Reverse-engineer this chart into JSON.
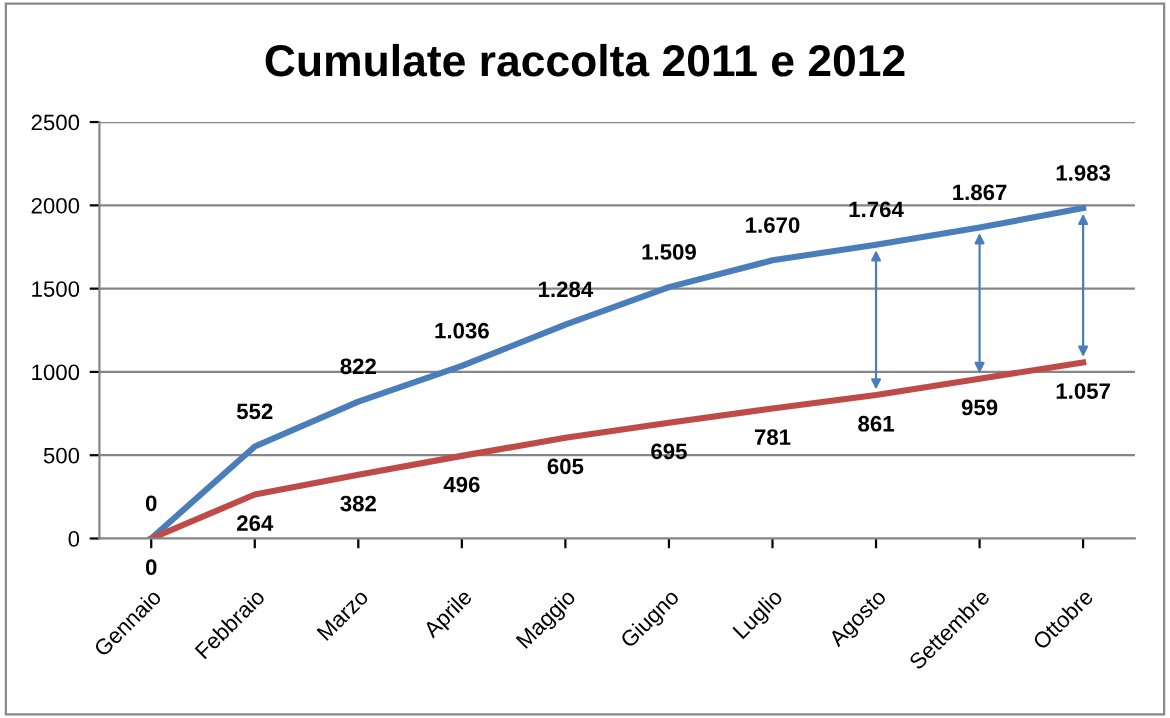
{
  "chart_data": {
    "type": "line",
    "title": "Cumulate raccolta 2011 e 2012",
    "categories": [
      "Gennaio",
      "Febbraio",
      "Marzo",
      "Aprile",
      "Maggio",
      "Giugno",
      "Luglio",
      "Agosto",
      "Settembre",
      "Ottobre"
    ],
    "series": [
      {
        "color": "#4a7ebb",
        "values": [
          0,
          552,
          822,
          1036,
          1284,
          1509,
          1670,
          1764,
          1867,
          1983
        ],
        "value_labels": [
          "0",
          "552",
          "822",
          "1.036",
          "1.284",
          "1.509",
          "1.670",
          "1.764",
          "1.867",
          "1.983"
        ]
      },
      {
        "color": "#be4b48",
        "values": [
          0,
          264,
          382,
          496,
          605,
          695,
          781,
          861,
          959,
          1057
        ],
        "value_labels": [
          "0",
          "264",
          "382",
          "496",
          "605",
          "695",
          "781",
          "861",
          "959",
          "1.057"
        ]
      }
    ],
    "ylim": [
      0,
      2500
    ],
    "yticks": [
      0,
      500,
      1000,
      1500,
      2000,
      2500
    ],
    "grid": "y",
    "marker": "none",
    "line_style": "solid",
    "legend": false
  }
}
